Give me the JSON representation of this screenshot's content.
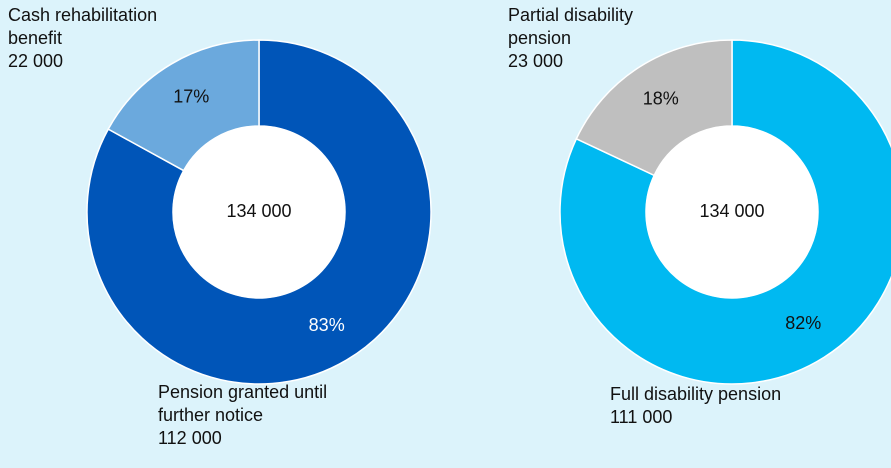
{
  "chart_data": [
    {
      "type": "donut",
      "categories": [
        "Pension granted until further notice",
        "Cash rehabilitation benefit"
      ],
      "values": [
        83,
        17
      ],
      "value_labels": [
        "83%",
        "17%"
      ],
      "colors": [
        "#0055b8",
        "#6ba9dd"
      ],
      "counts": [
        {
          "value": 112000,
          "label": "112 000"
        },
        {
          "value": 22000,
          "label": "22 000"
        }
      ],
      "total": {
        "value": 134000,
        "label": "134 000"
      }
    },
    {
      "type": "donut",
      "categories": [
        "Full disability pension",
        "Partial disability pension"
      ],
      "values": [
        82,
        18
      ],
      "value_labels": [
        "82%",
        "18%"
      ],
      "colors": [
        "#00b9f1",
        "#bfbfbf"
      ],
      "counts": [
        {
          "value": 111000,
          "label": "111 000"
        },
        {
          "value": 23000,
          "label": "23 000"
        }
      ],
      "total": {
        "value": 134000,
        "label": "134 000"
      }
    }
  ]
}
